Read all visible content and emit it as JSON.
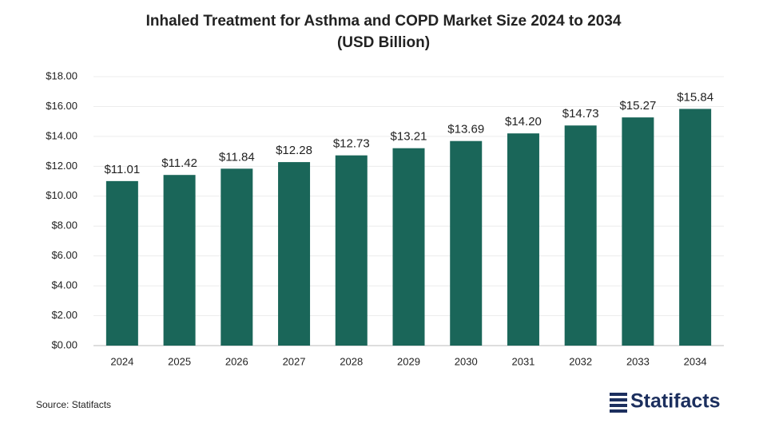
{
  "chart_data": {
    "type": "bar",
    "title": [
      "Inhaled Treatment for Asthma and COPD Market Size 2024 to 2034",
      "(USD Billion)"
    ],
    "categories": [
      "2024",
      "2025",
      "2026",
      "2027",
      "2028",
      "2029",
      "2030",
      "2031",
      "2032",
      "2033",
      "2034"
    ],
    "values": [
      11.01,
      11.42,
      11.84,
      12.28,
      12.73,
      13.21,
      13.69,
      14.2,
      14.73,
      15.27,
      15.84
    ],
    "value_labels": [
      "$11.01",
      "$11.42",
      "$11.84",
      "$12.28",
      "$12.73",
      "$13.21",
      "$13.69",
      "$14.20",
      "$14.73",
      "$15.27",
      "$15.84"
    ],
    "color": "#1a6659",
    "ylim": [
      0,
      18
    ],
    "yticks": [
      {
        "value": 0,
        "label": "$0.00"
      },
      {
        "value": 2,
        "label": "$2.00"
      },
      {
        "value": 4,
        "label": "$4.00"
      },
      {
        "value": 6,
        "label": "$6.00"
      },
      {
        "value": 8,
        "label": "$8.00"
      },
      {
        "value": 10,
        "label": "$10.00"
      },
      {
        "value": 12,
        "label": "$12.00"
      },
      {
        "value": 14,
        "label": "$14.00"
      },
      {
        "value": 16,
        "label": "$16.00"
      },
      {
        "value": 18,
        "label": "$18.00"
      }
    ],
    "grid": true,
    "source": "Source: Statifacts",
    "brand": "Statifacts"
  }
}
